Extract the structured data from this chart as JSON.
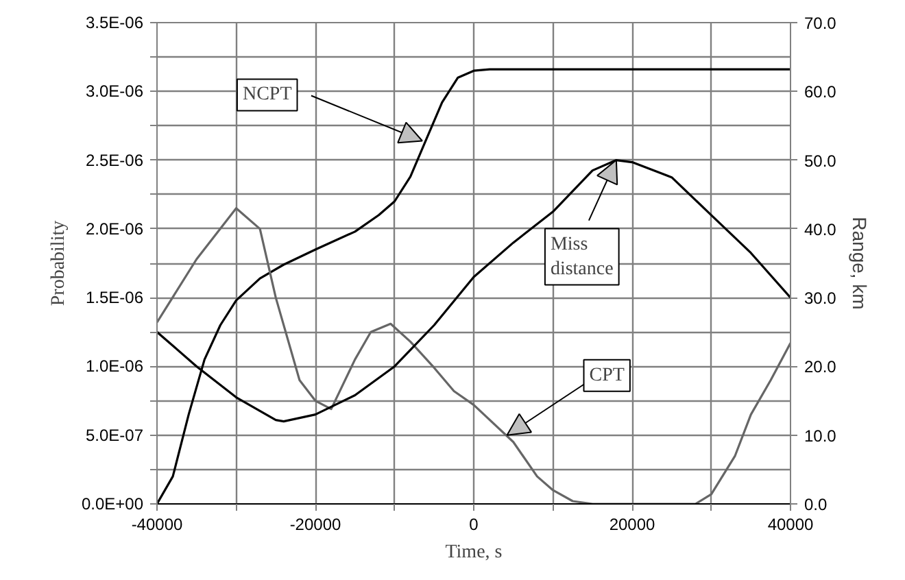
{
  "chart_data": {
    "type": "line",
    "xlabel": "Time, s",
    "ylabel": "Probability",
    "y2label": "Range, km",
    "xlim": [
      -40000,
      40000
    ],
    "ylim": [
      0,
      3.5e-06
    ],
    "y2lim": [
      0,
      70
    ],
    "xticks": [
      -40000,
      {
        "value": -30000,
        "label": null
      },
      -20000,
      {
        "value": -10000,
        "label": null
      },
      0,
      {
        "value": 10000,
        "label": null
      },
      20000,
      {
        "value": 30000,
        "label": null
      },
      40000
    ],
    "yticks": [
      {
        "value": 0,
        "label": "0.0E+00"
      },
      {
        "value": 2.5e-07,
        "label": null
      },
      {
        "value": 5e-07,
        "label": "5.0E-07"
      },
      {
        "value": 7.5e-07,
        "label": null
      },
      {
        "value": 1e-06,
        "label": "1.0E-06"
      },
      {
        "value": 1.25e-06,
        "label": null
      },
      {
        "value": 1.5e-06,
        "label": "1.5E-06"
      },
      {
        "value": 1.75e-06,
        "label": null
      },
      {
        "value": 2e-06,
        "label": "2.0E-06"
      },
      {
        "value": 2.25e-06,
        "label": null
      },
      {
        "value": 2.5e-06,
        "label": "2.5E-06"
      },
      {
        "value": 2.75e-06,
        "label": null
      },
      {
        "value": 3e-06,
        "label": "3.0E-06"
      },
      {
        "value": 3.25e-06,
        "label": null
      },
      {
        "value": 3.5e-06,
        "label": "3.5E-06"
      }
    ],
    "y2ticks": [
      {
        "value": 0,
        "label": "0.0"
      },
      {
        "value": 10,
        "label": "10.0"
      },
      {
        "value": 20,
        "label": "20.0"
      },
      {
        "value": 30,
        "label": "30.0"
      },
      {
        "value": 40,
        "label": "40.0"
      },
      {
        "value": 50,
        "label": "50.0"
      },
      {
        "value": 60,
        "label": "60.0"
      },
      {
        "value": 70,
        "label": "70.0"
      }
    ],
    "grid": true,
    "marker": "none",
    "line_style": "solid",
    "series": [
      {
        "color": "#000000",
        "x": [
          -40000,
          -38000,
          -36000,
          -34000,
          -32000,
          -30000,
          -27000,
          -24000,
          -20000,
          -15000,
          -12000,
          -10000,
          -8000,
          -6000,
          -4000,
          -2000,
          0,
          2000,
          40000
        ],
        "values": [
          0,
          2e-07,
          6.5e-07,
          1.05e-06,
          1.3e-06,
          1.48e-06,
          1.64e-06,
          1.74e-06,
          1.85e-06,
          1.98e-06,
          2.1e-06,
          2.2e-06,
          2.38e-06,
          2.65e-06,
          2.92e-06,
          3.1e-06,
          3.15e-06,
          3.16e-06,
          3.16e-06
        ]
      },
      {
        "color": "#666666",
        "x": [
          -40000,
          -35000,
          -30000,
          -27000,
          -25000,
          -22000,
          -20000,
          -18000,
          -15000,
          -13000,
          -10500,
          -8000,
          -5000,
          -2500,
          0,
          5000,
          8000,
          10000,
          12500,
          15000,
          28000,
          30000,
          33000,
          35000,
          37500,
          40000
        ],
        "values": [
          1.32e-06,
          1.78e-06,
          2.15e-06,
          2e-06,
          1.5e-06,
          9e-07,
          7.5e-07,
          6.9e-07,
          1.05e-06,
          1.25e-06,
          1.31e-06,
          1.18e-06,
          9.9e-07,
          8.2e-07,
          7.2e-07,
          4.5e-07,
          2e-07,
          1e-07,
          2e-08,
          0,
          0,
          7e-08,
          3.5e-07,
          6.5e-07,
          9e-07,
          1.17e-06
        ]
      },
      {
        "color": "#000000",
        "axis": "y2",
        "x": [
          -40000,
          -35000,
          -30000,
          -25000,
          -24000,
          -20000,
          -15000,
          -10000,
          -5000,
          0,
          5000,
          10000,
          15000,
          18000,
          20000,
          25000,
          30000,
          35000,
          40000
        ],
        "values": [
          25,
          20,
          15.5,
          12.2,
          12,
          13,
          15.8,
          20,
          26,
          33,
          38,
          42.5,
          48.5,
          50,
          49.7,
          47.5,
          42,
          36.5,
          30
        ]
      }
    ],
    "annotations": [
      {
        "text": "NCPT",
        "x": -6500,
        "y": 2.64e-06
      },
      {
        "text": "Miss distance",
        "x": 18000,
        "y": 2.5e-06
      },
      {
        "text": "CPT",
        "x": 4200,
        "y": 5e-07
      }
    ]
  }
}
